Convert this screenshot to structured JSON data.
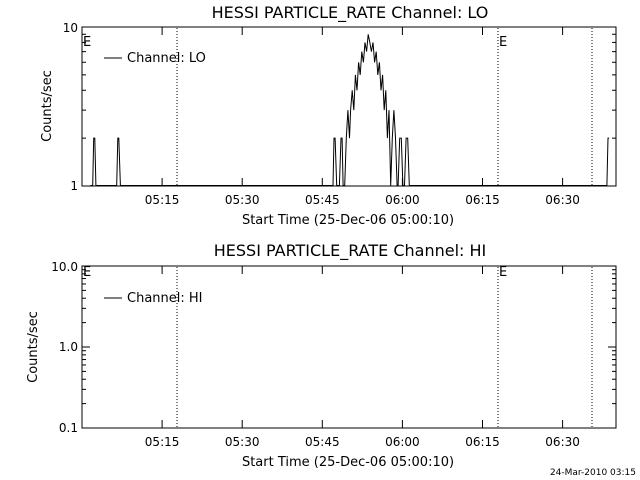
{
  "chart_data": [
    {
      "type": "line",
      "title": "HESSI PARTICLE_RATE Channel: LO",
      "xlabel": "Start Time (25-Dec-06 05:00:10)",
      "ylabel": "Counts/sec",
      "yscale": "log",
      "ylim": [
        1,
        10
      ],
      "yticks": [
        "1",
        "10"
      ],
      "xticks": [
        "05:15",
        "05:30",
        "05:45",
        "06:00",
        "06:15",
        "06:30"
      ],
      "xlim_minutes": [
        0,
        100
      ],
      "legend": "top-left",
      "series": [
        {
          "name": "Channel: LO",
          "x": [
            1.6,
            2.0,
            2.2,
            2.4,
            2.6,
            6.2,
            6.5,
            6.7,
            6.9,
            7.2,
            46.6,
            47.0,
            47.2,
            47.4,
            47.7,
            48.2,
            48.5,
            48.7,
            48.9,
            49.2,
            49.5,
            49.8,
            50.1,
            50.3,
            50.6,
            50.9,
            51.2,
            51.5,
            51.8,
            52.1,
            52.4,
            52.7,
            53.0,
            53.3,
            53.6,
            53.9,
            54.2,
            54.5,
            54.8,
            55.1,
            55.4,
            55.7,
            56.0,
            56.3,
            56.6,
            56.9,
            57.2,
            57.5,
            57.8,
            58.1,
            58.4,
            58.7,
            59.0,
            59.2,
            59.5,
            59.8,
            60.1,
            60.4,
            60.7,
            61.0,
            61.3,
            98.1,
            98.3,
            98.5,
            98.7
          ],
          "y": [
            1,
            1,
            2,
            2,
            1,
            1,
            1,
            2,
            2,
            1,
            1,
            1,
            2,
            2,
            1,
            1,
            2,
            2,
            1,
            1,
            2,
            3,
            2,
            3,
            4,
            3,
            5,
            4,
            6,
            5,
            7,
            6,
            8,
            7,
            9,
            8,
            7,
            8,
            6,
            7,
            5,
            6,
            4,
            5,
            3,
            4,
            2,
            3,
            1,
            2,
            3,
            2,
            1,
            1,
            2,
            2,
            1,
            1,
            2,
            2,
            1,
            1,
            1,
            2,
            2
          ]
        }
      ],
      "annotations": [
        "E",
        "E"
      ]
    },
    {
      "type": "line",
      "title": "HESSI PARTICLE_RATE Channel: HI",
      "xlabel": "Start Time (25-Dec-06 05:00:10)",
      "ylabel": "Counts/sec",
      "yscale": "log",
      "ylim": [
        0.1,
        10
      ],
      "yticks": [
        "0.1",
        "1.0",
        "10.0"
      ],
      "xticks": [
        "05:15",
        "05:30",
        "05:45",
        "06:00",
        "06:15",
        "06:30"
      ],
      "xlim_minutes": [
        0,
        100
      ],
      "legend": "top-left",
      "series": [
        {
          "name": "Channel: HI",
          "x": [],
          "y": []
        }
      ],
      "annotations": [
        "E",
        "E"
      ]
    }
  ],
  "footer": {
    "timestamp": "24-Mar-2010 03:15"
  }
}
